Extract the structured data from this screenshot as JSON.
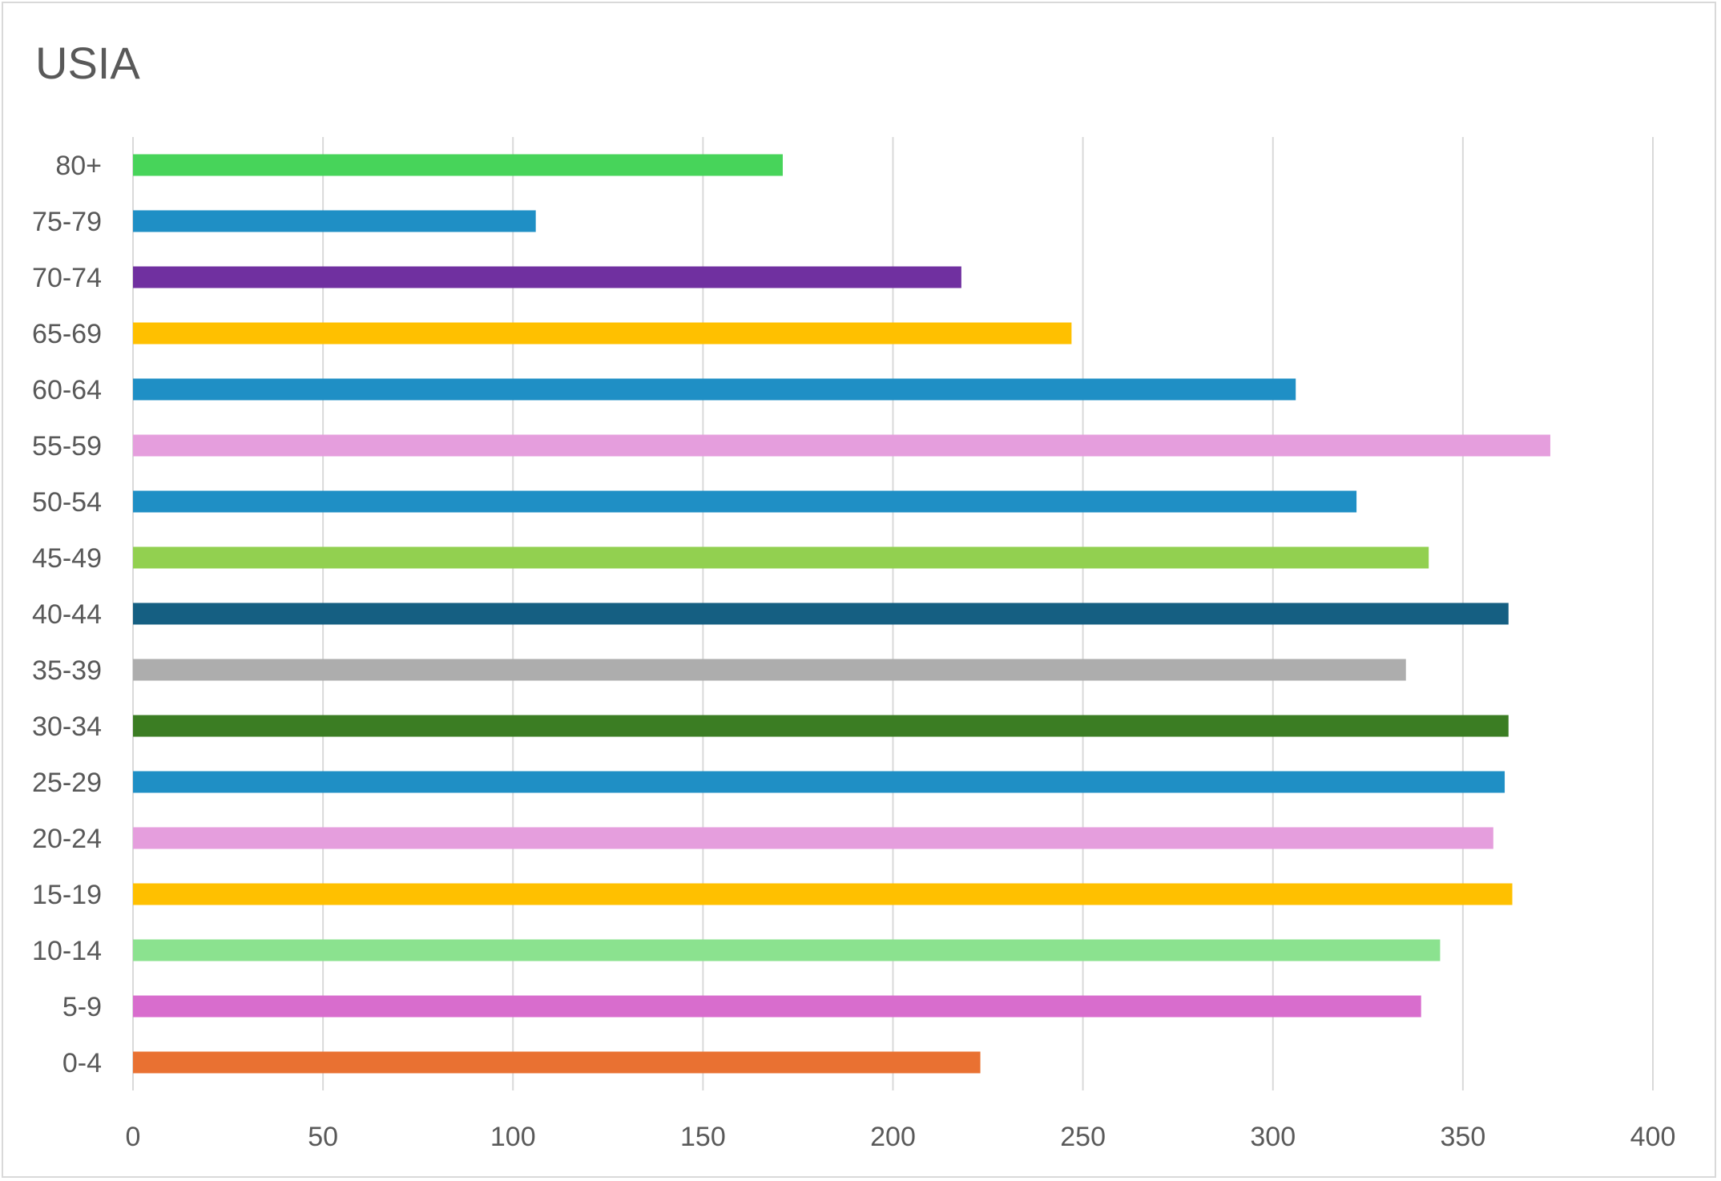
{
  "chart_data": {
    "type": "bar",
    "orientation": "horizontal",
    "title": "USIA",
    "xlabel": "",
    "ylabel": "",
    "xlim": [
      0,
      400
    ],
    "x_ticks": [
      0,
      50,
      100,
      150,
      200,
      250,
      300,
      350,
      400
    ],
    "grid": "vertical",
    "legend": "none",
    "categories": [
      "0-4",
      "5-9",
      "10-14",
      "15-19",
      "20-24",
      "25-29",
      "30-34",
      "35-39",
      "40-44",
      "45-49",
      "50-54",
      "55-59",
      "60-64",
      "65-69",
      "70-74",
      "75-79",
      "80+"
    ],
    "values": [
      223,
      339,
      344,
      363,
      358,
      361,
      362,
      335,
      362,
      341,
      322,
      373,
      306,
      247,
      218,
      106,
      171
    ],
    "colors": [
      "#E97132",
      "#D86DCD",
      "#8BE28F",
      "#FFC000",
      "#E59EDD",
      "#1F8FC5",
      "#3B7D23",
      "#ADADAD",
      "#155F82",
      "#92D050",
      "#1F8FC5",
      "#E59EDD",
      "#1F8FC5",
      "#FFC000",
      "#7030A0",
      "#1F8FC5",
      "#47D45A"
    ]
  }
}
